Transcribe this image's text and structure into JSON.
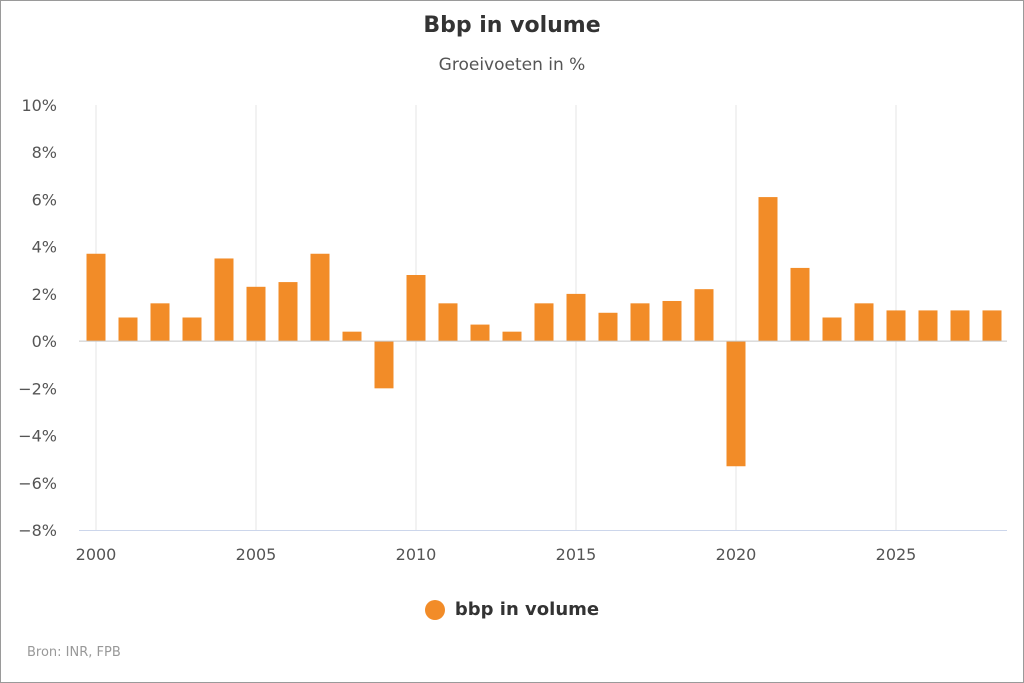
{
  "title": "Bbp in volume",
  "subtitle": "Groeivoeten in %",
  "credits": "Bron: INR, FPB",
  "legend": {
    "label": "bbp in volume",
    "color": "#f28c28"
  },
  "chart_data": {
    "type": "bar",
    "title": "Bbp in volume",
    "subtitle": "Groeivoeten in %",
    "xlabel": "",
    "ylabel": "",
    "x": [
      2000,
      2001,
      2002,
      2003,
      2004,
      2005,
      2006,
      2007,
      2008,
      2009,
      2010,
      2011,
      2012,
      2013,
      2014,
      2015,
      2016,
      2017,
      2018,
      2019,
      2020,
      2021,
      2022,
      2023,
      2024,
      2025,
      2026,
      2027,
      2028
    ],
    "series": [
      {
        "name": "bbp in volume",
        "color": "#f28c28",
        "values": [
          3.7,
          1.0,
          1.6,
          1.0,
          3.5,
          2.3,
          2.5,
          3.7,
          0.4,
          -2.0,
          2.8,
          1.6,
          0.7,
          0.4,
          1.6,
          2.0,
          1.2,
          1.6,
          1.7,
          2.2,
          -5.3,
          6.1,
          3.1,
          1.0,
          1.6,
          1.3,
          1.3,
          1.3,
          1.3
        ]
      }
    ],
    "xlim": [
      1999.8,
      2028.6
    ],
    "ylim": [
      -8,
      10
    ],
    "y_ticks": [
      -8,
      -6,
      -4,
      -2,
      0,
      2,
      4,
      6,
      8,
      10
    ],
    "y_tick_labels": [
      "−8%",
      "−6%",
      "−4%",
      "−2%",
      "0%",
      "2%",
      "4%",
      "6%",
      "8%",
      "10%"
    ],
    "x_ticks": [
      2000,
      2005,
      2010,
      2015,
      2020,
      2025
    ],
    "x_tick_labels": [
      "2000",
      "2005",
      "2010",
      "2015",
      "2020",
      "2025"
    ],
    "grid": "vertical",
    "legend_position": "bottom-center"
  }
}
